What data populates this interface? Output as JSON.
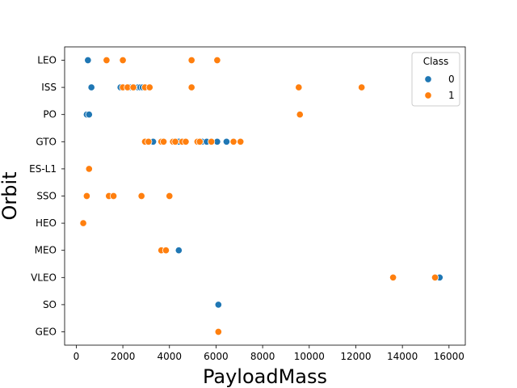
{
  "chart_data": {
    "type": "scatter",
    "title": "",
    "xlabel": "PayloadMass",
    "ylabel": "Orbit",
    "xlim": [
      -500,
      16700
    ],
    "xticks": [
      0,
      2000,
      4000,
      6000,
      8000,
      10000,
      12000,
      14000,
      16000
    ],
    "categories": [
      "LEO",
      "ISS",
      "PO",
      "GTO",
      "ES-L1",
      "SSO",
      "HEO",
      "MEO",
      "VLEO",
      "SO",
      "GEO"
    ],
    "grid": false,
    "legend": {
      "title": "Class",
      "placement": "top-right"
    },
    "series": [
      {
        "name": "0",
        "color": "#1f77b4",
        "points": [
          {
            "x": 500,
            "y": "LEO"
          },
          {
            "x": 650,
            "y": "ISS"
          },
          {
            "x": 1900,
            "y": "ISS"
          },
          {
            "x": 2300,
            "y": "ISS"
          },
          {
            "x": 2500,
            "y": "ISS"
          },
          {
            "x": 2650,
            "y": "ISS"
          },
          {
            "x": 2750,
            "y": "ISS"
          },
          {
            "x": 2850,
            "y": "ISS"
          },
          {
            "x": 450,
            "y": "PO"
          },
          {
            "x": 550,
            "y": "PO"
          },
          {
            "x": 3300,
            "y": "GTO"
          },
          {
            "x": 4400,
            "y": "GTO"
          },
          {
            "x": 5400,
            "y": "GTO"
          },
          {
            "x": 5600,
            "y": "GTO"
          },
          {
            "x": 6050,
            "y": "GTO"
          },
          {
            "x": 6450,
            "y": "GTO"
          },
          {
            "x": 4400,
            "y": "MEO"
          },
          {
            "x": 15600,
            "y": "VLEO"
          },
          {
            "x": 6100,
            "y": "SO"
          }
        ]
      },
      {
        "name": "1",
        "color": "#ff7f0e",
        "points": [
          {
            "x": 1300,
            "y": "LEO"
          },
          {
            "x": 2000,
            "y": "LEO"
          },
          {
            "x": 4950,
            "y": "LEO"
          },
          {
            "x": 6050,
            "y": "LEO"
          },
          {
            "x": 2000,
            "y": "ISS"
          },
          {
            "x": 2200,
            "y": "ISS"
          },
          {
            "x": 2450,
            "y": "ISS"
          },
          {
            "x": 2950,
            "y": "ISS"
          },
          {
            "x": 3150,
            "y": "ISS"
          },
          {
            "x": 4950,
            "y": "ISS"
          },
          {
            "x": 9550,
            "y": "ISS"
          },
          {
            "x": 12250,
            "y": "ISS"
          },
          {
            "x": 9600,
            "y": "PO"
          },
          {
            "x": 2950,
            "y": "GTO"
          },
          {
            "x": 3100,
            "y": "GTO"
          },
          {
            "x": 3650,
            "y": "GTO"
          },
          {
            "x": 3750,
            "y": "GTO"
          },
          {
            "x": 4150,
            "y": "GTO"
          },
          {
            "x": 4250,
            "y": "GTO"
          },
          {
            "x": 4550,
            "y": "GTO"
          },
          {
            "x": 4700,
            "y": "GTO"
          },
          {
            "x": 5200,
            "y": "GTO"
          },
          {
            "x": 5300,
            "y": "GTO"
          },
          {
            "x": 5800,
            "y": "GTO"
          },
          {
            "x": 6750,
            "y": "GTO"
          },
          {
            "x": 7050,
            "y": "GTO"
          },
          {
            "x": 550,
            "y": "ES-L1"
          },
          {
            "x": 450,
            "y": "SSO"
          },
          {
            "x": 1400,
            "y": "SSO"
          },
          {
            "x": 1600,
            "y": "SSO"
          },
          {
            "x": 2800,
            "y": "SSO"
          },
          {
            "x": 4000,
            "y": "SSO"
          },
          {
            "x": 300,
            "y": "HEO"
          },
          {
            "x": 3650,
            "y": "MEO"
          },
          {
            "x": 3850,
            "y": "MEO"
          },
          {
            "x": 13600,
            "y": "VLEO"
          },
          {
            "x": 15400,
            "y": "VLEO"
          },
          {
            "x": 6100,
            "y": "GEO"
          }
        ]
      }
    ]
  }
}
